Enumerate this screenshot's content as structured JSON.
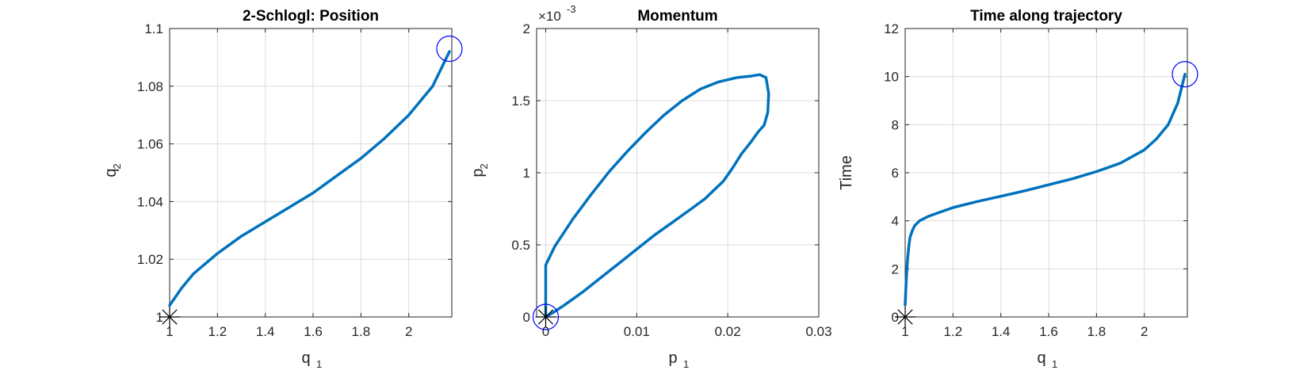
{
  "chart_data": [
    {
      "type": "line",
      "title": "2-Schlogl: Position",
      "xlabel": "q",
      "xlabel_sub": "1",
      "ylabel": "q",
      "ylabel_sub": "2",
      "xlim": [
        1,
        2.18
      ],
      "ylim": [
        1,
        1.1
      ],
      "xticks": [
        1,
        1.2,
        1.4,
        1.6,
        1.8,
        2
      ],
      "xtick_labels": [
        "1",
        "1.2",
        "1.4",
        "1.6",
        "1.8",
        "2"
      ],
      "yticks": [
        1,
        1.02,
        1.04,
        1.06,
        1.08,
        1.1
      ],
      "ytick_labels": [
        "1",
        "1.02",
        "1.04",
        "1.06",
        "1.08",
        "1.1"
      ],
      "grid": true,
      "color": "#0072BD",
      "series": [
        {
          "x": [
            1.0,
            1.05,
            1.1,
            1.2,
            1.3,
            1.4,
            1.5,
            1.6,
            1.7,
            1.8,
            1.9,
            2.0,
            2.1,
            2.17
          ],
          "y": [
            1.004,
            1.01,
            1.015,
            1.022,
            1.028,
            1.033,
            1.038,
            1.043,
            1.049,
            1.055,
            1.062,
            1.07,
            1.08,
            1.092
          ]
        }
      ],
      "markers": [
        {
          "kind": "asterisk",
          "x": 1.0,
          "y": 1.0,
          "color": "#000000"
        },
        {
          "kind": "circle",
          "x": 2.17,
          "y": 1.093,
          "color": "#0000ff"
        }
      ]
    },
    {
      "type": "line",
      "title": "Momentum",
      "xlabel": "p",
      "xlabel_sub": "1",
      "ylabel": "p",
      "ylabel_sub": "2",
      "exponent_label": "×10",
      "exponent_power": "-3",
      "xlim": [
        -0.001,
        0.03
      ],
      "ylim": [
        0,
        0.002
      ],
      "xticks": [
        0,
        0.01,
        0.02,
        0.03
      ],
      "xtick_labels": [
        "0",
        "0.01",
        "0.02",
        "0.03"
      ],
      "yticks": [
        0,
        0.0005,
        0.001,
        0.0015,
        0.002
      ],
      "ytick_labels": [
        "0",
        "0.5",
        "1",
        "1.5",
        "2"
      ],
      "grid": true,
      "color": "#0072BD",
      "series": [
        {
          "x": [
            0,
            0,
            0,
            0.001,
            0.003,
            0.005,
            0.007,
            0.009,
            0.011,
            0.013,
            0.015,
            0.017,
            0.019,
            0.021,
            0.0225,
            0.0235,
            0.0242,
            0.0245,
            0.0244,
            0.024,
            0.0233,
            0.0225,
            0.0215,
            0.0205,
            0.0195,
            0.0185,
            0.0175,
            0.016,
            0.014,
            0.012,
            0.01,
            0.008,
            0.006,
            0.004,
            0.002,
            0.0008,
            0
          ],
          "y": [
            0,
            0.00015,
            0.00036,
            0.00049,
            0.00068,
            0.00085,
            0.00101,
            0.00115,
            0.00128,
            0.0014,
            0.0015,
            0.00158,
            0.00163,
            0.00166,
            0.00167,
            0.00168,
            0.00166,
            0.00155,
            0.00142,
            0.00133,
            0.00128,
            0.00121,
            0.00113,
            0.00103,
            0.00094,
            0.00088,
            0.00082,
            0.00075,
            0.00066,
            0.00057,
            0.00047,
            0.00037,
            0.00027,
            0.00017,
            8e-05,
            3e-05,
            0
          ]
        }
      ],
      "markers": [
        {
          "kind": "asterisk",
          "x": 0,
          "y": 0,
          "color": "#000000"
        },
        {
          "kind": "circle",
          "x": 0,
          "y": 0,
          "color": "#0000ff"
        }
      ]
    },
    {
      "type": "line",
      "title": "Time along trajectory",
      "xlabel": "q",
      "xlabel_sub": "1",
      "ylabel": "Time",
      "ylabel_sub": "",
      "xlim": [
        1,
        2.18
      ],
      "ylim": [
        0,
        12
      ],
      "xticks": [
        1,
        1.2,
        1.4,
        1.6,
        1.8,
        2
      ],
      "xtick_labels": [
        "1",
        "1.2",
        "1.4",
        "1.6",
        "1.8",
        "2"
      ],
      "yticks": [
        0,
        2,
        4,
        6,
        8,
        10,
        12
      ],
      "ytick_labels": [
        "0",
        "2",
        "4",
        "6",
        "8",
        "10",
        "12"
      ],
      "grid": true,
      "color": "#0072BD",
      "series": [
        {
          "x": [
            1.0,
            1.003,
            1.006,
            1.01,
            1.015,
            1.02,
            1.03,
            1.04,
            1.06,
            1.1,
            1.2,
            1.3,
            1.4,
            1.5,
            1.6,
            1.7,
            1.8,
            1.9,
            2.0,
            2.05,
            2.1,
            2.14,
            2.17
          ],
          "y": [
            0.5,
            1.2,
            1.8,
            2.4,
            2.9,
            3.3,
            3.6,
            3.8,
            4.0,
            4.2,
            4.55,
            4.8,
            5.02,
            5.25,
            5.5,
            5.75,
            6.05,
            6.4,
            6.95,
            7.4,
            8.0,
            8.9,
            10.1
          ]
        }
      ],
      "markers": [
        {
          "kind": "asterisk",
          "x": 1.0,
          "y": 0,
          "color": "#000000"
        },
        {
          "kind": "circle",
          "x": 2.17,
          "y": 10.1,
          "color": "#0000ff"
        }
      ]
    }
  ]
}
